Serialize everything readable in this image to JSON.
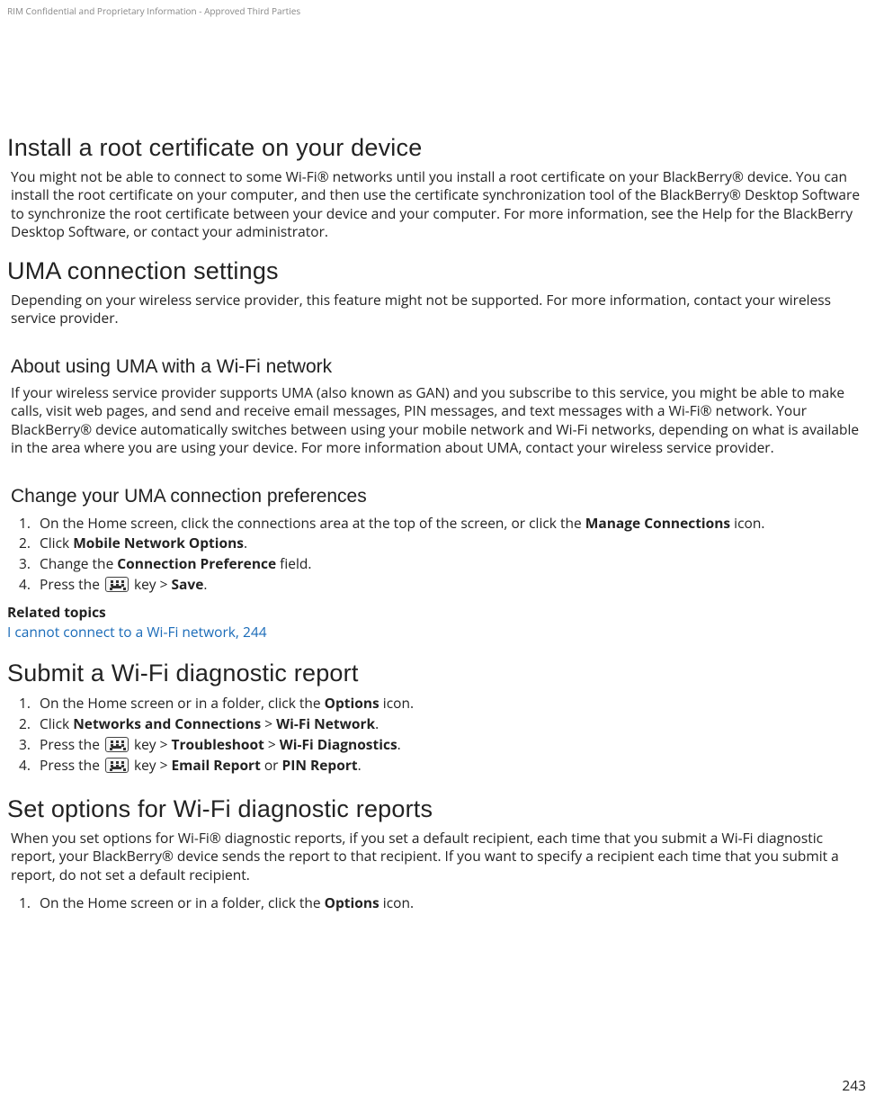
{
  "header": "RIM Confidential and Proprietary Information - Approved Third Parties",
  "page_number": "243",
  "s1": {
    "title": "Install a root certificate on your device",
    "para": "You might not be able to connect to some Wi-Fi® networks until you install a root certificate on your BlackBerry® device. You can install the root certificate on your computer, and then use the certificate synchronization tool of the BlackBerry® Desktop Software to synchronize the root certificate between your device and your computer. For more information, see the Help for the BlackBerry Desktop Software, or contact your administrator."
  },
  "s2": {
    "title": "UMA connection settings",
    "para": "Depending on your wireless service provider, this feature might not be supported. For more information, contact your wireless service provider.",
    "sub1": {
      "title": "About using UMA with a Wi-Fi network",
      "para": "If your wireless service provider supports UMA (also known as GAN) and you subscribe to this service, you might be able to make calls, visit web pages, and send and receive email messages, PIN messages, and text messages with a Wi-Fi® network. Your BlackBerry® device automatically switches between using your mobile network and Wi-Fi networks, depending on what is available in the area where you are using your device. For more information about UMA, contact your wireless service provider."
    },
    "sub2": {
      "title": "Change your UMA connection preferences",
      "step1_pre": "On the Home screen, click the connections area at the top of the screen, or click the ",
      "step1_b": "Manage Connections",
      "step1_post": " icon.",
      "step2_pre": "Click ",
      "step2_b": "Mobile Network Options",
      "step2_post": ".",
      "step3_pre": "Change the ",
      "step3_b": "Connection Preference",
      "step3_post": " field.",
      "step4_pre": "Press the ",
      "step4_mid": " key > ",
      "step4_b": "Save",
      "step4_post": ".",
      "related_title": "Related topics",
      "related_link": "I cannot connect to a Wi-Fi network, 244"
    }
  },
  "s3": {
    "title": "Submit a Wi-Fi diagnostic report",
    "step1_pre": "On the Home screen or in a folder, click the ",
    "step1_b": "Options",
    "step1_post": " icon.",
    "step2_pre": "Click ",
    "step2_b1": "Networks and Connections",
    "step2_mid": " > ",
    "step2_b2": "Wi-Fi Network",
    "step2_post": ".",
    "step3_pre": "Press the ",
    "step3_mid": " key > ",
    "step3_b1": "Troubleshoot",
    "step3_mid2": " > ",
    "step3_b2": "Wi-Fi Diagnostics",
    "step3_post": ".",
    "step4_pre": "Press the ",
    "step4_mid": " key > ",
    "step4_b1": "Email Report",
    "step4_mid2": " or ",
    "step4_b2": "PIN Report",
    "step4_post": "."
  },
  "s4": {
    "title": "Set options for Wi-Fi diagnostic reports",
    "para": "When you set options for Wi-Fi® diagnostic reports, if you set a default recipient, each time that you submit a Wi-Fi diagnostic report, your BlackBerry® device sends the report to that recipient. If you want to specify a recipient each time that you submit a report, do not set a default recipient.",
    "step1_pre": "On the Home screen or in a folder, click the ",
    "step1_b": "Options",
    "step1_post": " icon."
  }
}
